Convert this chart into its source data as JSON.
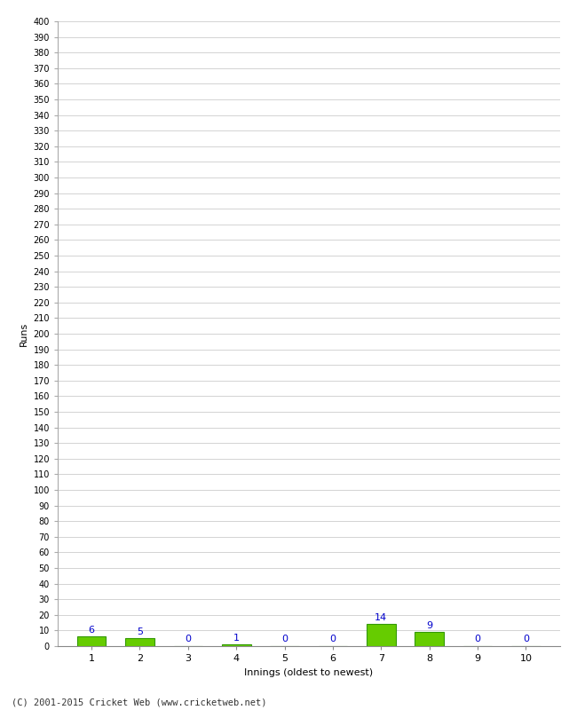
{
  "xlabel": "Innings (oldest to newest)",
  "ylabel": "Runs",
  "categories": [
    1,
    2,
    3,
    4,
    5,
    6,
    7,
    8,
    9,
    10
  ],
  "values": [
    6,
    5,
    0,
    1,
    0,
    0,
    14,
    9,
    0,
    0
  ],
  "bar_color": "#66cc00",
  "bar_edge_color": "#339900",
  "label_color": "#0000cc",
  "ylim": [
    0,
    400
  ],
  "background_color": "#ffffff",
  "grid_color": "#cccccc",
  "footer": "(C) 2001-2015 Cricket Web (www.cricketweb.net)"
}
